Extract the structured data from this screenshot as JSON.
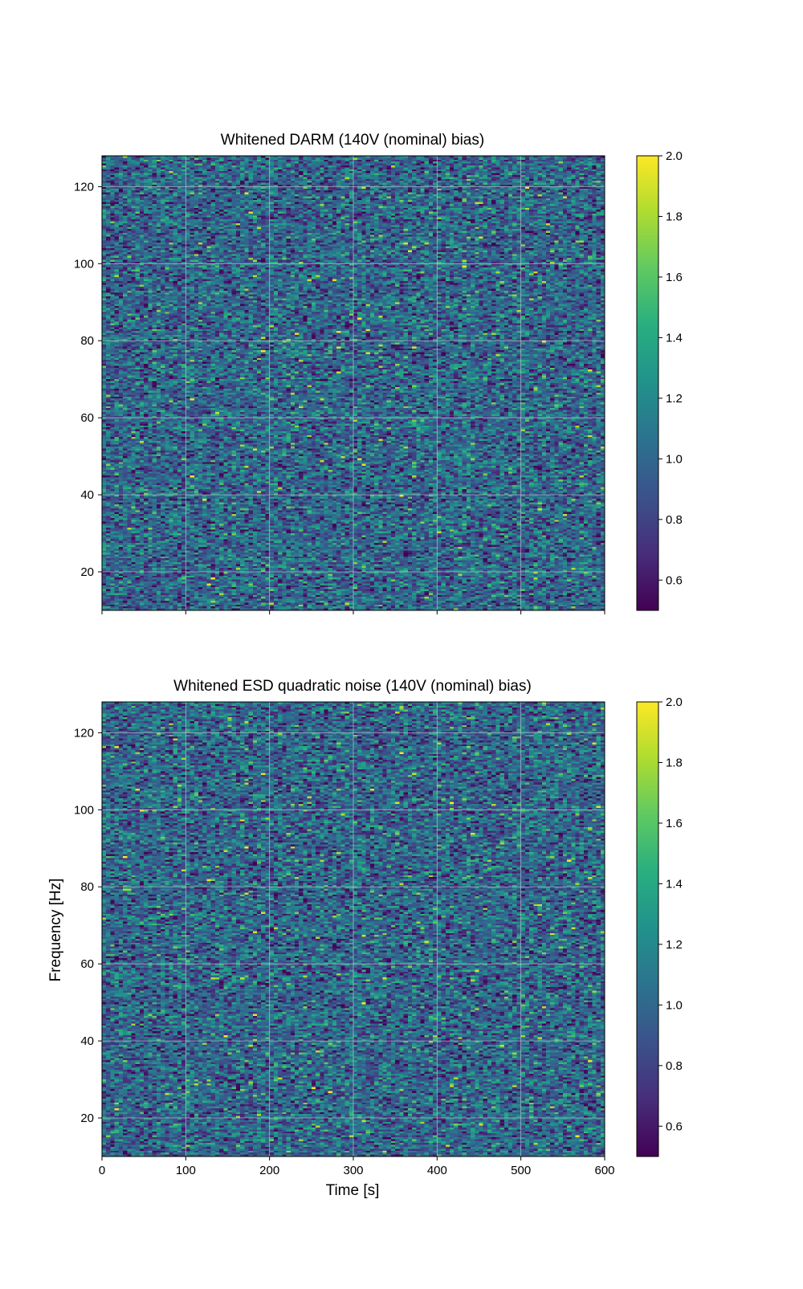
{
  "chart_data": [
    {
      "type": "heatmap",
      "title": "Whitened DARM (140V (nominal) bias)",
      "xlabel": "",
      "ylabel": "",
      "xlim": [
        0,
        600
      ],
      "ylim": [
        10,
        128
      ],
      "xticks": [
        0,
        100,
        200,
        300,
        400,
        500,
        600
      ],
      "xtick_labels_shown": false,
      "yticks": [
        20,
        40,
        60,
        80,
        100,
        120
      ],
      "grid": true,
      "colormap": "viridis",
      "colorbar": {
        "min": 0.5,
        "max": 2.0,
        "ticks": [
          0.6,
          0.8,
          1.0,
          1.2,
          1.4,
          1.6,
          1.8,
          2.0
        ]
      },
      "value_distribution": {
        "typical_range": [
          0.5,
          2.0
        ],
        "bulk": [
          0.8,
          1.3
        ]
      },
      "cell_grid": {
        "time_bins": 120,
        "frequency_bins": 236
      }
    },
    {
      "type": "heatmap",
      "title": "Whitened ESD quadratic noise (140V (nominal) bias)",
      "xlabel": "Time [s]",
      "ylabel": "Frequency [Hz]",
      "xlim": [
        0,
        600
      ],
      "ylim": [
        10,
        128
      ],
      "xticks": [
        0,
        100,
        200,
        300,
        400,
        500,
        600
      ],
      "xtick_labels_shown": true,
      "yticks": [
        20,
        40,
        60,
        80,
        100,
        120
      ],
      "grid": true,
      "colormap": "viridis",
      "colorbar": {
        "min": 0.5,
        "max": 2.0,
        "ticks": [
          0.6,
          0.8,
          1.0,
          1.2,
          1.4,
          1.6,
          1.8,
          2.0
        ]
      },
      "value_distribution": {
        "typical_range": [
          0.5,
          2.0
        ],
        "bulk": [
          0.8,
          1.3
        ]
      },
      "cell_grid": {
        "time_bins": 120,
        "frequency_bins": 236
      }
    }
  ]
}
